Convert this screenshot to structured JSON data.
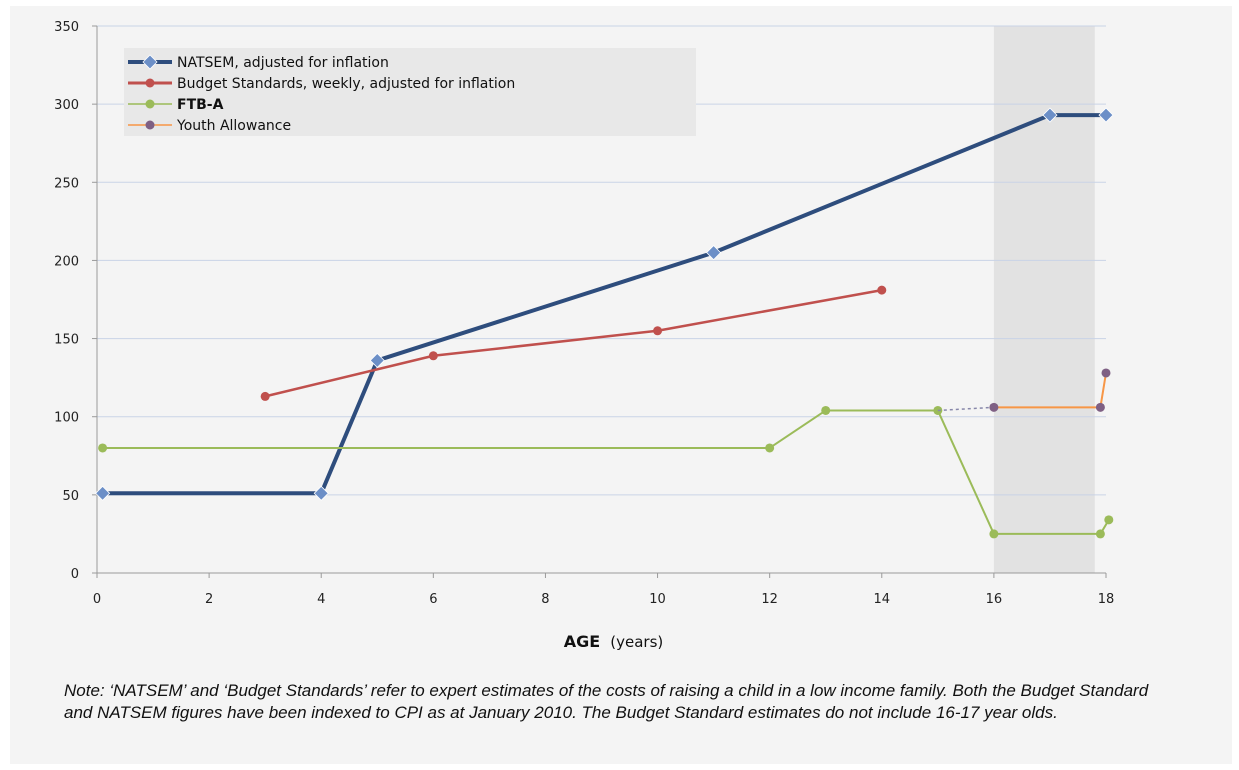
{
  "chart_data": {
    "type": "line",
    "title": "",
    "xlabel": "AGE",
    "xlabel_unit": "(years)",
    "ylabel": "",
    "xlim": [
      0,
      18
    ],
    "ylim": [
      0,
      350
    ],
    "x_ticks": [
      "0",
      "2",
      "4",
      "6",
      "8",
      "10",
      "12",
      "14",
      "16",
      "18"
    ],
    "y_ticks": [
      "0",
      "50",
      "100",
      "150",
      "200",
      "250",
      "300",
      "350"
    ],
    "grid": "horizontal",
    "legend_position": "top-left",
    "shaded_region": {
      "x_from": 16,
      "x_to": 17.8
    },
    "series": [
      {
        "name": "NATSEM, adjusted for inflation",
        "color": "#2e4d7d",
        "marker": "diamond",
        "marker_color": "#6c8fc7",
        "points": [
          [
            0.1,
            51
          ],
          [
            4,
            51
          ],
          [
            5,
            136
          ],
          [
            11,
            205
          ],
          [
            17,
            293
          ],
          [
            18,
            293
          ]
        ]
      },
      {
        "name": "Budget Standards, weekly, adjusted for inflation",
        "color": "#c0504d",
        "marker": "circle",
        "marker_color": "#c0504d",
        "points": [
          [
            3,
            113
          ],
          [
            6,
            139
          ],
          [
            10,
            155
          ],
          [
            14,
            181
          ]
        ]
      },
      {
        "name": "FTB-A",
        "color": "#9bbb59",
        "marker": "circle",
        "marker_color": "#9bbb59",
        "points": [
          [
            0.1,
            80
          ],
          [
            12,
            80
          ],
          [
            13,
            104
          ],
          [
            15,
            104
          ],
          [
            16,
            25
          ],
          [
            17.9,
            25
          ],
          [
            18.05,
            34
          ]
        ]
      },
      {
        "name": "Youth Allowance",
        "color": "#f79646",
        "marker": "circle",
        "marker_color": "#7f6084",
        "dashed_connector": {
          "color": "#8888aa",
          "points": [
            [
              15,
              104
            ],
            [
              16,
              106
            ]
          ]
        },
        "points": [
          [
            16,
            106
          ],
          [
            17.9,
            106
          ],
          [
            18,
            128
          ]
        ]
      }
    ]
  },
  "note": "Note: ‘NATSEM’ and ‘Budget Standards’ refer to expert estimates of the costs of raising a child in a low income family. Both the Budget Standard and NATSEM figures have been indexed to CPI as at January 2010. The Budget Standard estimates do not include 16-17 year olds."
}
